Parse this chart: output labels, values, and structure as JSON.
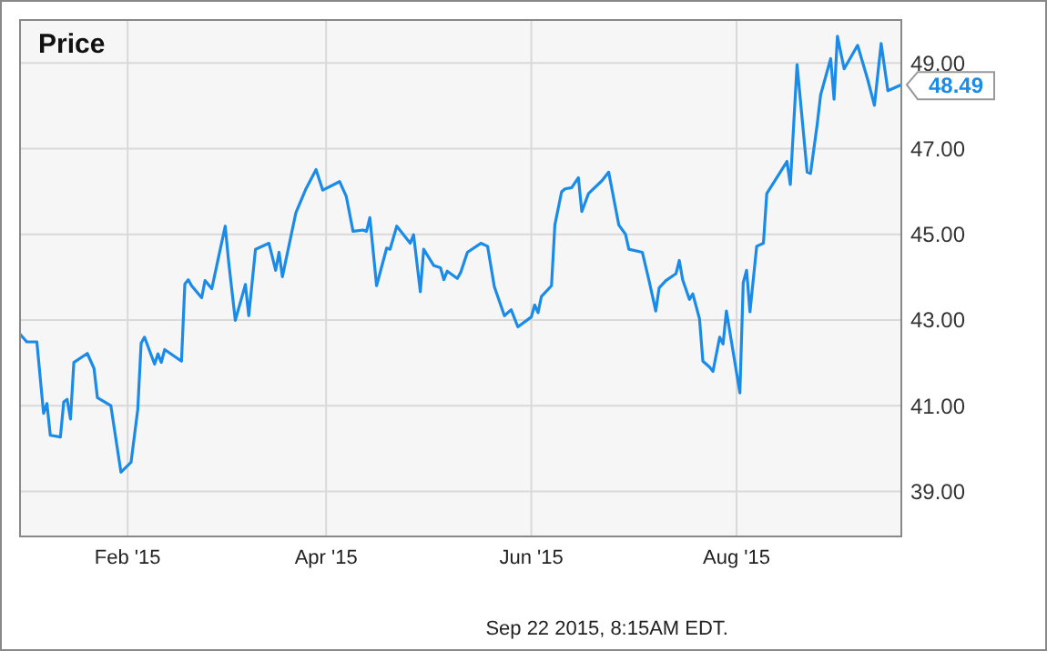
{
  "chart_data": {
    "type": "line",
    "title": "Price",
    "x": [
      "2014-12-31",
      "2015-01-02",
      "2015-01-05",
      "2015-01-07",
      "2015-01-08",
      "2015-01-09",
      "2015-01-12",
      "2015-01-13",
      "2015-01-14",
      "2015-01-15",
      "2015-01-16",
      "2015-01-20",
      "2015-01-22",
      "2015-01-23",
      "2015-01-27",
      "2015-01-30",
      "2015-02-02",
      "2015-02-04",
      "2015-02-05",
      "2015-02-06",
      "2015-02-09",
      "2015-02-10",
      "2015-02-11",
      "2015-02-12",
      "2015-02-17",
      "2015-02-18",
      "2015-02-19",
      "2015-02-20",
      "2015-02-23",
      "2015-02-24",
      "2015-02-26",
      "2015-03-02",
      "2015-03-03",
      "2015-03-05",
      "2015-03-08",
      "2015-03-09",
      "2015-03-11",
      "2015-03-15",
      "2015-03-17",
      "2015-03-18",
      "2015-03-19",
      "2015-03-23",
      "2015-03-26",
      "2015-03-29",
      "2015-03-31",
      "2015-04-05",
      "2015-04-07",
      "2015-04-09",
      "2015-04-12",
      "2015-04-13",
      "2015-04-14",
      "2015-04-16",
      "2015-04-19",
      "2015-04-20",
      "2015-04-22",
      "2015-04-26",
      "2015-04-27",
      "2015-04-29",
      "2015-04-30",
      "2015-05-03",
      "2015-05-05",
      "2015-05-06",
      "2015-05-07",
      "2015-05-10",
      "2015-05-11",
      "2015-05-13",
      "2015-05-17",
      "2015-05-19",
      "2015-05-21",
      "2015-05-24",
      "2015-05-26",
      "2015-05-28",
      "2015-06-01",
      "2015-06-02",
      "2015-06-03",
      "2015-06-04",
      "2015-06-07",
      "2015-06-08",
      "2015-06-10",
      "2015-06-11",
      "2015-06-13",
      "2015-06-15",
      "2015-06-16",
      "2015-06-18",
      "2015-06-22",
      "2015-06-24",
      "2015-06-27",
      "2015-06-29",
      "2015-06-30",
      "2015-07-04",
      "2015-07-06",
      "2015-07-08",
      "2015-07-09",
      "2015-07-11",
      "2015-07-14",
      "2015-07-15",
      "2015-07-16",
      "2015-07-18",
      "2015-07-19",
      "2015-07-21",
      "2015-07-22",
      "2015-07-24",
      "2015-07-25",
      "2015-07-27",
      "2015-07-28",
      "2015-07-29",
      "2015-08-02",
      "2015-08-03",
      "2015-08-04",
      "2015-08-05",
      "2015-08-07",
      "2015-08-09",
      "2015-08-10",
      "2015-08-16",
      "2015-08-17",
      "2015-08-19",
      "2015-08-22",
      "2015-08-23",
      "2015-08-25",
      "2015-08-26",
      "2015-08-29",
      "2015-08-30",
      "2015-08-31",
      "2015-09-02",
      "2015-09-06",
      "2015-09-09",
      "2015-09-11",
      "2015-09-13",
      "2015-09-15",
      "2015-09-19"
    ],
    "series": [
      {
        "color": "#1a8be8",
        "values": [
          42.67,
          42.49,
          42.49,
          40.82,
          41.05,
          40.31,
          40.27,
          41.09,
          41.15,
          40.69,
          42.01,
          42.22,
          41.87,
          41.19,
          41.0,
          39.45,
          39.68,
          40.91,
          42.46,
          42.6,
          41.97,
          42.21,
          42.01,
          42.31,
          42.04,
          43.84,
          43.94,
          43.8,
          43.52,
          43.92,
          43.73,
          45.19,
          44.37,
          42.99,
          43.83,
          43.1,
          44.65,
          44.79,
          44.16,
          44.58,
          44.01,
          45.5,
          46.06,
          46.51,
          46.03,
          46.23,
          45.88,
          45.07,
          45.1,
          45.07,
          45.39,
          43.8,
          44.68,
          44.65,
          45.19,
          44.79,
          44.99,
          43.66,
          44.65,
          44.27,
          44.22,
          43.94,
          44.14,
          43.97,
          44.11,
          44.58,
          44.79,
          44.72,
          43.78,
          43.1,
          43.24,
          42.84,
          43.07,
          43.35,
          43.17,
          43.55,
          43.8,
          45.22,
          45.99,
          46.06,
          46.09,
          46.32,
          45.53,
          45.95,
          46.25,
          46.45,
          45.22,
          45.0,
          44.65,
          44.58,
          43.92,
          43.21,
          43.75,
          43.92,
          44.08,
          44.39,
          43.94,
          43.48,
          43.61,
          43.03,
          42.04,
          41.9,
          41.8,
          42.6,
          42.44,
          43.21,
          41.3,
          43.87,
          44.16,
          43.19,
          44.72,
          44.79,
          45.95,
          46.7,
          46.16,
          48.96,
          46.45,
          46.42,
          47.57,
          48.25,
          49.1,
          48.15,
          49.62,
          48.86,
          49.41,
          48.61,
          48.01,
          49.45,
          48.35,
          48.49
        ]
      }
    ],
    "xlim": [
      "2014-12-31",
      "2015-09-19"
    ],
    "xticks": [
      {
        "value": "2015-02-01",
        "label": "Feb '15"
      },
      {
        "value": "2015-04-01",
        "label": "Apr '15"
      },
      {
        "value": "2015-06-01",
        "label": "Jun '15"
      },
      {
        "value": "2015-08-01",
        "label": "Aug '15"
      }
    ],
    "ylim": [
      37.95,
      50
    ],
    "yticks": [
      {
        "value": 39,
        "label": "39.00"
      },
      {
        "value": 41,
        "label": "41.00"
      },
      {
        "value": 43,
        "label": "43.00"
      },
      {
        "value": 45,
        "label": "45.00"
      },
      {
        "value": 47,
        "label": "47.00"
      },
      {
        "value": 49,
        "label": "49.00"
      }
    ],
    "grid": true,
    "annotations": [
      {
        "text": "48.49",
        "x": "2015-09-19",
        "y": 48.49
      },
      "Sep 22 2015, 8:15AM EDT."
    ]
  }
}
